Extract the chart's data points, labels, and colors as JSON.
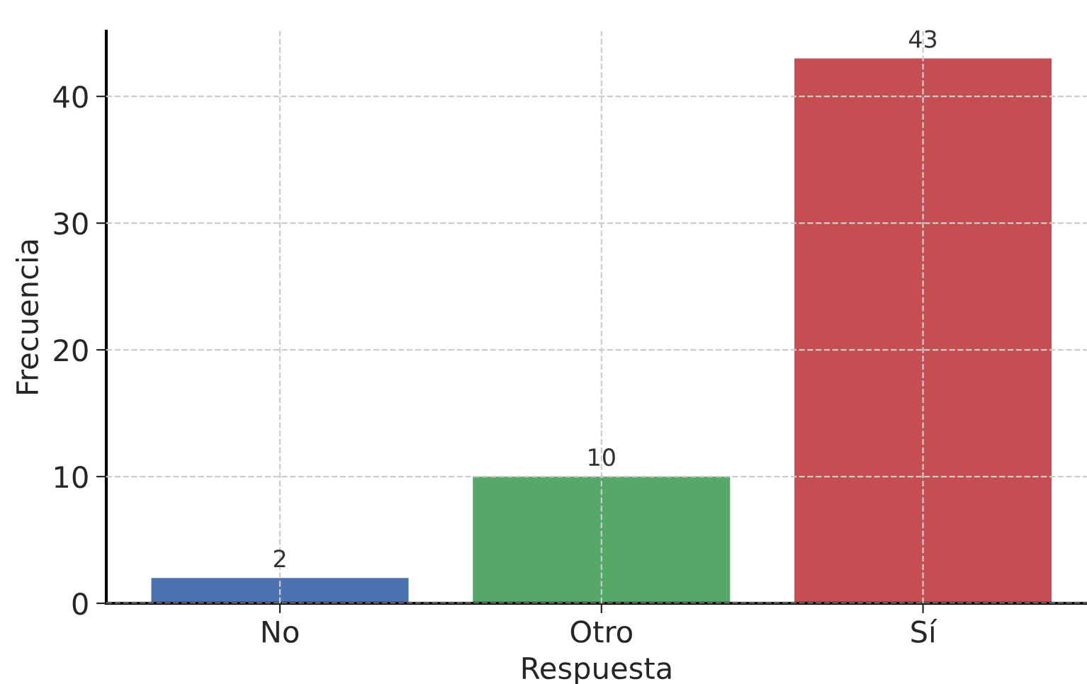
{
  "chart_data": {
    "type": "bar",
    "xlabel": "Respuesta",
    "ylabel": "Frecuencia",
    "categories": [
      "No",
      "Otro",
      "Sí"
    ],
    "values": [
      2,
      10,
      43
    ],
    "colors": [
      "#4c72b0",
      "#55a868",
      "#c44e52"
    ],
    "ylim": [
      0,
      45.15
    ],
    "yticks": [
      0,
      10,
      20,
      30,
      40
    ],
    "grid": true,
    "data_labels": true
  }
}
